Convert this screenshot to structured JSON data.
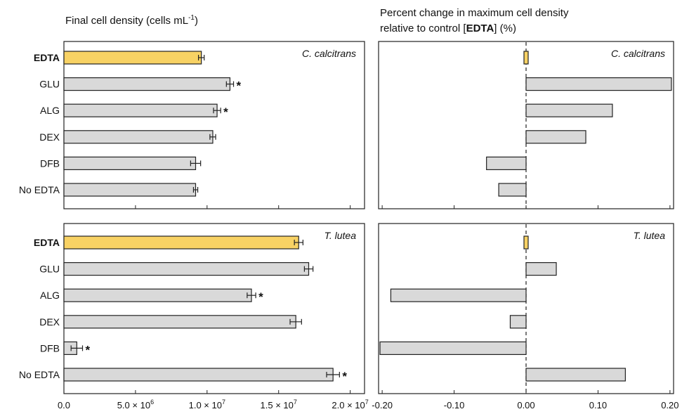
{
  "colors": {
    "highlight": "#f8d264",
    "bar": "#d9d9d9",
    "stroke": "#222222"
  },
  "chart_data": [
    {
      "type": "bar",
      "orientation": "horizontal",
      "title": "Final cell density (cells mL-1)",
      "title_main": "Final cell density (cells mL",
      "title_sup": "-1",
      "title_end": ")",
      "panel_label": "C. calcitrans",
      "categories": [
        "EDTA",
        "GLU",
        "ALG",
        "DEX",
        "DFB",
        "No EDTA"
      ],
      "values": [
        9600000,
        11600000,
        10700000,
        10400000,
        9200000,
        9200000
      ],
      "errors": [
        200000,
        250000,
        250000,
        200000,
        350000,
        150000
      ],
      "significant": [
        false,
        true,
        true,
        false,
        false,
        false
      ],
      "highlight": "EDTA",
      "xlim": [
        0,
        21000000
      ],
      "xticks": [
        {
          "v": 0,
          "label": "0.0"
        },
        {
          "v": 5000000,
          "m": "5.0",
          "e": "6"
        },
        {
          "v": 10000000,
          "m": "1.0",
          "e": "7"
        },
        {
          "v": 15000000,
          "m": "1.5",
          "e": "7"
        },
        {
          "v": 20000000,
          "m": "2.0",
          "e": "7"
        }
      ],
      "tick_labels_shown": false,
      "grid": false
    },
    {
      "type": "bar",
      "orientation": "horizontal",
      "title_line1": "Percent change in maximum cell density",
      "title_line2_pre": "relative to control [",
      "title_line2_bold": "EDTA",
      "title_line2_post": "] (%)",
      "panel_label": "C. calcitrans",
      "categories": [
        "EDTA",
        "GLU",
        "ALG",
        "DEX",
        "DFB",
        "No EDTA"
      ],
      "values": [
        0,
        0.202,
        0.12,
        0.083,
        -0.055,
        -0.038
      ],
      "highlight": "EDTA",
      "xlim": [
        -0.205,
        0.205
      ],
      "xticks": [
        {
          "v": -0.2,
          "label": "-0.20"
        },
        {
          "v": -0.1,
          "label": "-0.10"
        },
        {
          "v": 0,
          "label": "0.00"
        },
        {
          "v": 0.1,
          "label": "0.10"
        },
        {
          "v": 0.2,
          "label": "0.20"
        }
      ],
      "tick_labels_shown": false,
      "zero_line": "dashed",
      "grid": false
    },
    {
      "type": "bar",
      "orientation": "horizontal",
      "panel_label": "T. lutea",
      "categories": [
        "EDTA",
        "GLU",
        "ALG",
        "DEX",
        "DFB",
        "No EDTA"
      ],
      "values": [
        16400000,
        17100000,
        13100000,
        16200000,
        900000,
        18800000
      ],
      "errors": [
        300000,
        300000,
        300000,
        400000,
        400000,
        450000
      ],
      "significant": [
        false,
        false,
        true,
        false,
        true,
        true
      ],
      "highlight": "EDTA",
      "xlim": [
        0,
        21000000
      ],
      "xticks": [
        {
          "v": 0,
          "label": "0.0"
        },
        {
          "v": 5000000,
          "m": "5.0",
          "e": "6"
        },
        {
          "v": 10000000,
          "m": "1.0",
          "e": "7"
        },
        {
          "v": 15000000,
          "m": "1.5",
          "e": "7"
        },
        {
          "v": 20000000,
          "m": "2.0",
          "e": "7"
        }
      ],
      "tick_labels_shown": true,
      "grid": false
    },
    {
      "type": "bar",
      "orientation": "horizontal",
      "panel_label": "T. lutea",
      "categories": [
        "EDTA",
        "GLU",
        "ALG",
        "DEX",
        "DFB",
        "No EDTA"
      ],
      "values": [
        0,
        0.042,
        -0.188,
        -0.022,
        -0.203,
        0.138
      ],
      "highlight": "EDTA",
      "xlim": [
        -0.205,
        0.205
      ],
      "xticks": [
        {
          "v": -0.2,
          "label": "-0.20"
        },
        {
          "v": -0.1,
          "label": "-0.10"
        },
        {
          "v": 0,
          "label": "0.00"
        },
        {
          "v": 0.1,
          "label": "0.10"
        },
        {
          "v": 0.2,
          "label": "0.20"
        }
      ],
      "tick_labels_shown": true,
      "zero_line": "dashed",
      "grid": false
    }
  ]
}
